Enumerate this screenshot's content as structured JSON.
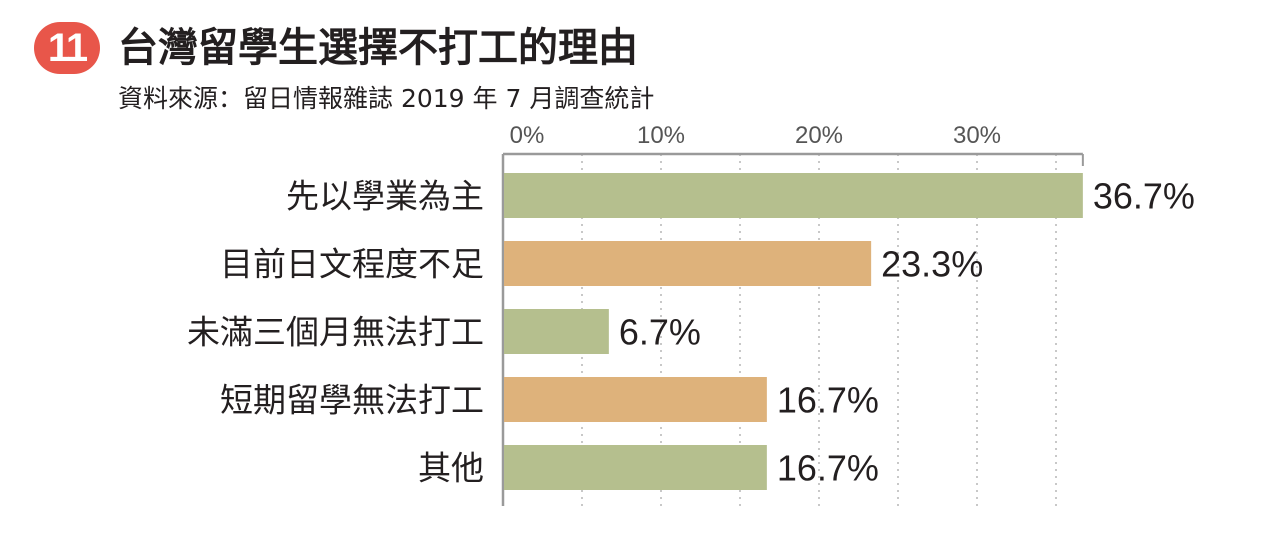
{
  "badge": "11",
  "title": "台灣留學生選擇不打工的理由",
  "subtitle": "資料來源：留日情報雜誌 2019 年 7 月調查統計",
  "colors": {
    "badge": "#e8564a",
    "green_bar": "#b5bf8e",
    "orange_bar": "#deb27b",
    "axis": "#9a9a9a",
    "grid": "#c8c8c8"
  },
  "chart_data": {
    "type": "bar",
    "orientation": "horizontal",
    "categories": [
      "先以學業為主",
      "目前日文程度不足",
      "未滿三個月無法打工",
      "短期留學無法打工",
      "其他"
    ],
    "values": [
      36.7,
      23.3,
      6.7,
      16.7,
      16.7
    ],
    "value_labels": [
      "36.7%",
      "23.3%",
      "6.7%",
      "16.7%",
      "16.7%"
    ],
    "bar_colors": [
      "#b5bf8e",
      "#deb27b",
      "#b5bf8e",
      "#deb27b",
      "#b5bf8e"
    ],
    "x_ticks": [
      0,
      10,
      20,
      30
    ],
    "x_tick_labels": [
      "0%",
      "10%",
      "20%",
      "30%"
    ],
    "xlim": [
      0,
      36.7
    ],
    "grid": true,
    "grid_style": "dotted vertical, every 5%",
    "axis_position": "top"
  }
}
